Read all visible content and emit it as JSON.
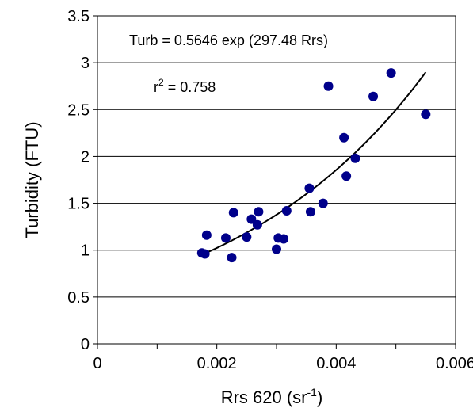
{
  "chart_data": {
    "type": "scatter",
    "xlabel": {
      "main": "Rrs 620 (sr",
      "sup": "-1",
      "end": ")"
    },
    "ylabel": "Turbidity (FTU)",
    "xlim": [
      0,
      0.006
    ],
    "ylim": [
      0,
      3.5
    ],
    "xticks": [
      0,
      0.002,
      0.004,
      0.006
    ],
    "xtick_labels": [
      "0",
      "0.002",
      "0.004",
      "0.006"
    ],
    "yticks": [
      0,
      0.5,
      1,
      1.5,
      2,
      2.5,
      3,
      3.5
    ],
    "ytick_labels": [
      "0",
      "0.5",
      "1",
      "1.5",
      "2",
      "2.5",
      "3",
      "3.5"
    ],
    "grid": "horizontal",
    "marker_color": "#00008B",
    "curve_color": "#000000",
    "points": {
      "x": [
        0.00175,
        0.0018,
        0.00183,
        0.00215,
        0.00225,
        0.00228,
        0.0025,
        0.00258,
        0.00268,
        0.0027,
        0.003,
        0.00303,
        0.00312,
        0.00317,
        0.00355,
        0.00357,
        0.00378,
        0.00387,
        0.00413,
        0.00417,
        0.00432,
        0.00462,
        0.00492,
        0.0055
      ],
      "y": [
        0.97,
        0.96,
        1.16,
        1.13,
        0.92,
        1.4,
        1.14,
        1.33,
        1.27,
        1.41,
        1.01,
        1.13,
        1.12,
        1.42,
        1.66,
        1.41,
        1.5,
        2.75,
        2.2,
        1.79,
        1.98,
        2.64,
        2.89,
        2.45
      ]
    },
    "fit": {
      "type": "exponential",
      "a": 0.5646,
      "b": 297.48,
      "x_range": [
        0.00175,
        0.0055
      ]
    },
    "annotations": {
      "equation": "Turb = 0.5646 exp (297.48 Rrs)",
      "r2_prefix": "r",
      "r2_sup": "2",
      "r2_value": " = 0.758"
    }
  }
}
